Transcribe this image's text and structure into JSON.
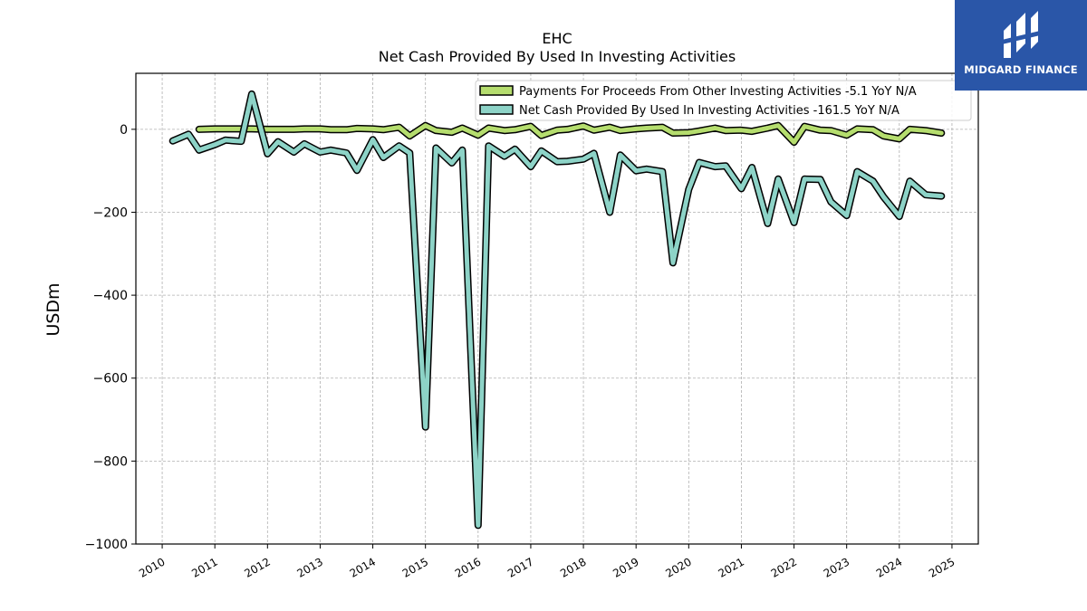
{
  "chart_data": {
    "type": "line",
    "title": "EHC",
    "subtitle": "Net Cash Provided By Used In Investing Activities",
    "xlabel": "",
    "ylabel": "USDm",
    "xlim": [
      2009.5,
      2025.5
    ],
    "ylim": [
      -1000,
      135
    ],
    "x_ticks": [
      2010,
      2011,
      2012,
      2013,
      2014,
      2015,
      2016,
      2017,
      2018,
      2019,
      2020,
      2021,
      2022,
      2023,
      2024,
      2025
    ],
    "y_ticks": [
      0,
      -200,
      -400,
      -600,
      -800,
      -1000
    ],
    "y_tick_labels": [
      "0",
      "−200",
      "−400",
      "−600",
      "−800",
      "−1000"
    ],
    "grid": true,
    "legend_position": "top-right",
    "series": [
      {
        "name": "Payments For Proceeds From Other Investing Activities  -5.1 YoY N/A",
        "color": "#b5dd6e",
        "x": [
          2010.7,
          2011.0,
          2011.2,
          2011.5,
          2011.7,
          2012.0,
          2012.2,
          2012.5,
          2012.7,
          2013.0,
          2013.2,
          2013.5,
          2013.7,
          2014.0,
          2014.2,
          2014.5,
          2014.7,
          2015.0,
          2015.2,
          2015.5,
          2015.7,
          2016.0,
          2016.2,
          2016.5,
          2016.7,
          2017.0,
          2017.2,
          2017.5,
          2017.7,
          2018.0,
          2018.2,
          2018.5,
          2018.7,
          2019.0,
          2019.2,
          2019.5,
          2019.7,
          2020.0,
          2020.2,
          2020.5,
          2020.7,
          2021.0,
          2021.2,
          2021.5,
          2021.7,
          2022.0,
          2022.2,
          2022.5,
          2022.7,
          2023.0,
          2023.2,
          2023.5,
          2023.7,
          2024.0,
          2024.2,
          2024.5,
          2024.8
        ],
        "values": [
          0,
          1,
          1,
          1,
          1,
          0,
          0,
          0,
          1,
          1,
          -1,
          -1,
          2,
          1,
          -1,
          5,
          -16,
          9,
          -3,
          -7,
          3,
          -14,
          3,
          -3,
          -1,
          7,
          -15,
          -2,
          0,
          8,
          -2,
          5,
          -3,
          1,
          3,
          5,
          -9,
          -8,
          -4,
          3,
          -3,
          -2,
          -5,
          3,
          9,
          -31,
          7,
          -2,
          -3,
          -14,
          1,
          -1,
          -16,
          -23,
          0,
          -3,
          -9
        ]
      },
      {
        "name": "Net Cash Provided By Used In Investing Activities  -161.5 YoY N/A",
        "color": "#8dd3c7",
        "x": [
          2010.2,
          2010.5,
          2010.7,
          2011.0,
          2011.2,
          2011.5,
          2011.7,
          2012.0,
          2012.2,
          2012.5,
          2012.7,
          2013.0,
          2013.2,
          2013.5,
          2013.7,
          2014.0,
          2014.2,
          2014.5,
          2014.7,
          2015.0,
          2015.2,
          2015.5,
          2015.7,
          2016.0,
          2016.2,
          2016.5,
          2016.7,
          2017.0,
          2017.2,
          2017.5,
          2017.7,
          2018.0,
          2018.2,
          2018.5,
          2018.7,
          2019.0,
          2019.2,
          2019.5,
          2019.7,
          2020.0,
          2020.2,
          2020.5,
          2020.7,
          2021.0,
          2021.2,
          2021.5,
          2021.7,
          2022.0,
          2022.2,
          2022.5,
          2022.7,
          2023.0,
          2023.2,
          2023.5,
          2023.7,
          2024.0,
          2024.2,
          2024.5,
          2024.8
        ],
        "values": [
          -28,
          -12,
          -50,
          -37,
          -26,
          -29,
          85,
          -59,
          -30,
          -55,
          -35,
          -55,
          -50,
          -57,
          -99,
          -25,
          -68,
          -40,
          -57,
          -718,
          -45,
          -81,
          -50,
          -955,
          -40,
          -65,
          -48,
          -90,
          -52,
          -78,
          -77,
          -72,
          -58,
          -200,
          -62,
          -100,
          -96,
          -102,
          -322,
          -145,
          -80,
          -90,
          -88,
          -143,
          -92,
          -227,
          -120,
          -225,
          -120,
          -121,
          -175,
          -208,
          -102,
          -125,
          -163,
          -210,
          -125,
          -158,
          -161
        ]
      }
    ]
  },
  "logo": {
    "text": "MIDGARD FINANCE"
  }
}
